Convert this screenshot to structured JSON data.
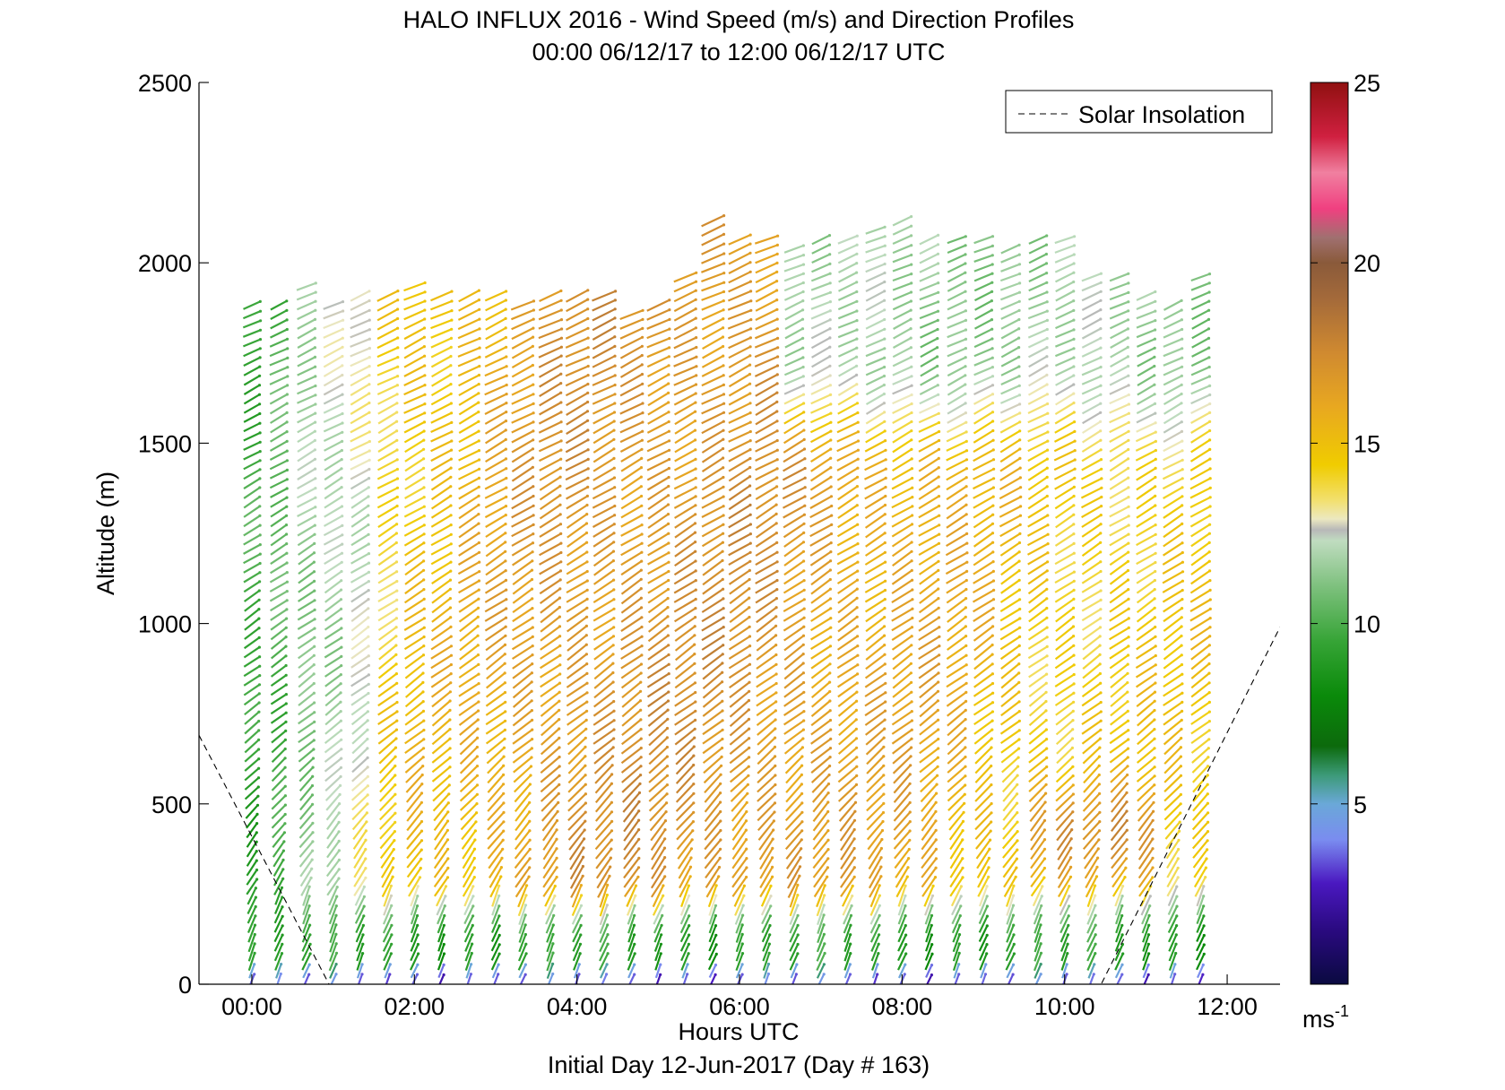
{
  "chart_data": {
    "type": "wind-barb-profile",
    "title": "HALO INFLUX 2016 - Wind Speed (m/s) and Direction Profiles",
    "subtitle": "00:00 06/12/17 to 12:00 06/12/17  UTC",
    "xlabel": "Hours UTC",
    "footer": "Initial Day 12-Jun-2017 (Day # 163)",
    "ylabel": "Altitude (m)",
    "x_ticks": [
      "00:00",
      "02:00",
      "04:00",
      "06:00",
      "08:00",
      "10:00",
      "12:00"
    ],
    "x_tick_hours": [
      0,
      2,
      4,
      6,
      8,
      10,
      12
    ],
    "y_ticks": [
      "0",
      "500",
      "1000",
      "1500",
      "2000",
      "2500"
    ],
    "y_tick_values": [
      0,
      500,
      1000,
      1500,
      2000,
      2500
    ],
    "xlim_hours": [
      -0.65,
      12.65
    ],
    "ylim": [
      0,
      2500
    ],
    "legend": {
      "label": "Solar Insolation",
      "placement": "top-right",
      "style": "dashed"
    },
    "colorbar": {
      "unit": "ms",
      "unit_exp": "-1",
      "ticks": [
        "5",
        "10",
        "15",
        "20",
        "25"
      ],
      "tick_values": [
        5,
        10,
        15,
        20,
        25
      ],
      "range": [
        0,
        25
      ],
      "stops": [
        {
          "v": 0,
          "c": "#0a0a40"
        },
        {
          "v": 1.5,
          "c": "#2a0a80"
        },
        {
          "v": 2.8,
          "c": "#4a18c0"
        },
        {
          "v": 4.0,
          "c": "#7a8cf0"
        },
        {
          "v": 5.0,
          "c": "#6aa8d8"
        },
        {
          "v": 5.8,
          "c": "#3c9a78"
        },
        {
          "v": 6.6,
          "c": "#0c6a0c"
        },
        {
          "v": 8.0,
          "c": "#0a8a0a"
        },
        {
          "v": 9.5,
          "c": "#36a436"
        },
        {
          "v": 11.0,
          "c": "#7cc07c"
        },
        {
          "v": 12.3,
          "c": "#c0dcc0"
        },
        {
          "v": 12.6,
          "c": "#b8b8b8"
        },
        {
          "v": 12.9,
          "c": "#ece8c0"
        },
        {
          "v": 13.4,
          "c": "#f2e070"
        },
        {
          "v": 14.4,
          "c": "#f0cc00"
        },
        {
          "v": 16.0,
          "c": "#e8a820"
        },
        {
          "v": 17.5,
          "c": "#d08a30"
        },
        {
          "v": 19.0,
          "c": "#a46a3a"
        },
        {
          "v": 20.0,
          "c": "#8a5a3a"
        },
        {
          "v": 20.7,
          "c": "#a07070"
        },
        {
          "v": 21.5,
          "c": "#f04080"
        },
        {
          "v": 22.5,
          "c": "#f080a0"
        },
        {
          "v": 23.5,
          "c": "#d02040"
        },
        {
          "v": 25.0,
          "c": "#901010"
        }
      ]
    },
    "profile_times_hours": [
      0.0,
      0.33,
      0.67,
      1.0,
      1.33,
      1.67,
      2.0,
      2.33,
      2.67,
      3.0,
      3.33,
      3.67,
      4.0,
      4.33,
      4.67,
      5.0,
      5.33,
      5.67,
      6.0,
      6.33,
      6.67,
      7.0,
      7.33,
      7.67,
      8.0,
      8.33,
      8.67,
      9.0,
      9.33,
      9.67,
      10.0,
      10.33,
      10.67,
      11.0,
      11.33,
      11.67
    ],
    "profile_top_altitude_m": [
      1900,
      1900,
      1950,
      1900,
      1920,
      1910,
      1950,
      1910,
      1910,
      1910,
      1900,
      1910,
      1920,
      1910,
      1880,
      1900,
      1960,
      2120,
      2080,
      2080,
      2040,
      2070,
      2080,
      2090,
      2120,
      2080,
      2080,
      2080,
      2040,
      2080,
      2080,
      1960,
      1960,
      1930,
      1900,
      1960
    ],
    "gate_spacing_m": 26,
    "speed_field_mps": {
      "near_surface_0_60m": 3,
      "surface_layer_60_300m": 9,
      "profile_00_to_01h": 9.5,
      "profile_01_to_02h": 12,
      "profile_02_to_04h": 15,
      "profile_04_to_06h": 17,
      "profile_06_to_08h": 16,
      "upper_06_to_11h_above_1400m": 11.5,
      "profile_08_to_12h": 14.5,
      "lower_10_to_11h_200_600m": 17
    },
    "direction_note": "arrows point toward the upper-right (south-westerly flow), steeper near the surface",
    "solar_insolation": {
      "x_hours": [
        -0.65,
        0.95,
        10.45,
        12.65
      ],
      "y_altitude_m": [
        690,
        0,
        0,
        990
      ]
    }
  }
}
